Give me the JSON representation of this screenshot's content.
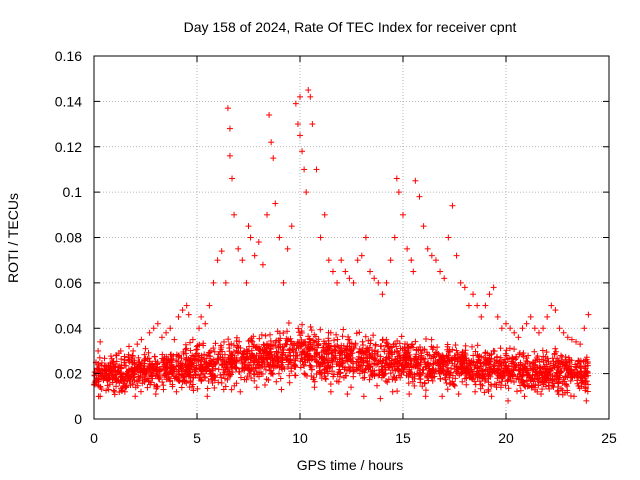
{
  "chart_data": {
    "type": "scatter",
    "title": "Day 158 of 2024, Rate Of TEC Index for receiver cpnt",
    "xlabel": "GPS time / hours",
    "ylabel": "ROTI / TECUs",
    "xlim": [
      0,
      25
    ],
    "ylim": [
      0,
      0.16
    ],
    "xticks": [
      0,
      5,
      10,
      15,
      20,
      25
    ],
    "xtick_labels": [
      "0",
      "5",
      "10",
      "15",
      "20",
      "25"
    ],
    "yticks": [
      0,
      0.02,
      0.04,
      0.06,
      0.08,
      0.1,
      0.12,
      0.14,
      0.16
    ],
    "ytick_labels": [
      "0",
      "0.02",
      "0.04",
      "0.06",
      "0.08",
      "0.1",
      "0.12",
      "0.14",
      "0.16"
    ],
    "grid": true,
    "marker": "plus",
    "color": "#ff0000",
    "series": [
      {
        "name": "ROTI",
        "x": [
          0.0,
          0.1,
          0.2,
          0.3,
          0.4,
          0.5,
          0.7,
          0.9,
          1.1,
          1.3,
          1.5,
          1.7,
          1.9,
          2.1,
          2.3,
          2.5,
          2.7,
          2.9,
          3.1,
          3.3,
          3.5,
          3.7,
          3.9,
          4.1,
          4.3,
          4.5,
          4.6,
          4.8,
          5.0,
          5.1,
          5.2,
          5.4,
          5.6,
          5.8,
          6.0,
          6.2,
          6.4,
          6.5,
          6.6,
          6.6,
          6.7,
          6.8,
          7.0,
          7.2,
          7.4,
          7.5,
          7.6,
          7.8,
          8.0,
          8.2,
          8.4,
          8.5,
          8.6,
          8.7,
          8.8,
          9.0,
          9.2,
          9.4,
          9.6,
          9.8,
          9.9,
          10.0,
          10.0,
          10.1,
          10.2,
          10.3,
          10.4,
          10.5,
          10.6,
          10.8,
          11.0,
          11.2,
          11.4,
          11.6,
          11.8,
          12.0,
          12.2,
          12.4,
          12.6,
          12.8,
          13.0,
          13.2,
          13.4,
          13.6,
          13.8,
          14.0,
          14.2,
          14.4,
          14.6,
          14.7,
          14.8,
          15.0,
          15.2,
          15.4,
          15.5,
          15.6,
          15.8,
          16.0,
          16.2,
          16.4,
          16.6,
          16.8,
          17.0,
          17.2,
          17.4,
          17.6,
          17.8,
          18.0,
          18.2,
          18.4,
          18.6,
          18.8,
          19.0,
          19.2,
          19.4,
          19.6,
          19.8,
          20.0,
          20.2,
          20.4,
          20.6,
          20.8,
          21.0,
          21.2,
          21.4,
          21.6,
          21.8,
          22.0,
          22.2,
          22.4,
          22.6,
          22.8,
          23.0,
          23.2,
          23.4,
          23.6,
          23.8,
          24.0,
          0.3,
          1.0,
          2.0,
          3.0,
          4.0,
          5.5,
          6.3,
          7.1,
          7.9,
          8.3,
          9.1,
          9.5,
          10.7,
          11.5,
          12.3,
          13.1,
          13.9,
          14.5,
          15.3,
          16.1,
          16.9,
          17.7,
          18.5,
          19.3,
          20.1,
          20.9,
          21.7,
          22.5,
          23.3,
          23.9
        ],
        "y": [
          0.015,
          0.025,
          0.03,
          0.034,
          0.02,
          0.018,
          0.022,
          0.025,
          0.028,
          0.03,
          0.026,
          0.032,
          0.03,
          0.033,
          0.035,
          0.031,
          0.038,
          0.04,
          0.042,
          0.036,
          0.038,
          0.04,
          0.035,
          0.045,
          0.048,
          0.05,
          0.046,
          0.035,
          0.032,
          0.04,
          0.045,
          0.042,
          0.05,
          0.06,
          0.07,
          0.074,
          0.06,
          0.137,
          0.128,
          0.116,
          0.106,
          0.09,
          0.075,
          0.07,
          0.06,
          0.085,
          0.08,
          0.072,
          0.078,
          0.068,
          0.09,
          0.134,
          0.122,
          0.115,
          0.095,
          0.08,
          0.06,
          0.075,
          0.085,
          0.139,
          0.13,
          0.142,
          0.125,
          0.118,
          0.11,
          0.1,
          0.145,
          0.142,
          0.13,
          0.11,
          0.08,
          0.09,
          0.07,
          0.065,
          0.06,
          0.07,
          0.065,
          0.062,
          0.06,
          0.07,
          0.072,
          0.08,
          0.065,
          0.062,
          0.06,
          0.055,
          0.06,
          0.07,
          0.08,
          0.106,
          0.1,
          0.09,
          0.075,
          0.07,
          0.065,
          0.105,
          0.098,
          0.085,
          0.075,
          0.072,
          0.07,
          0.065,
          0.062,
          0.08,
          0.094,
          0.072,
          0.06,
          0.058,
          0.05,
          0.055,
          0.05,
          0.045,
          0.05,
          0.055,
          0.058,
          0.045,
          0.04,
          0.042,
          0.04,
          0.038,
          0.036,
          0.04,
          0.042,
          0.045,
          0.04,
          0.038,
          0.04,
          0.045,
          0.05,
          0.048,
          0.04,
          0.038,
          0.036,
          0.035,
          0.034,
          0.033,
          0.04,
          0.046,
          0.01,
          0.012,
          0.01,
          0.011,
          0.012,
          0.01,
          0.013,
          0.012,
          0.014,
          0.015,
          0.013,
          0.016,
          0.014,
          0.012,
          0.011,
          0.01,
          0.009,
          0.012,
          0.011,
          0.01,
          0.01,
          0.011,
          0.012,
          0.01,
          0.008,
          0.01,
          0.011,
          0.012,
          0.01,
          0.008
        ]
      }
    ],
    "baseline_band": [
      {
        "x": 0,
        "low": 0.008,
        "high": 0.03
      },
      {
        "x": 2,
        "low": 0.009,
        "high": 0.032
      },
      {
        "x": 4,
        "low": 0.01,
        "high": 0.034
      },
      {
        "x": 6,
        "low": 0.01,
        "high": 0.037
      },
      {
        "x": 8,
        "low": 0.012,
        "high": 0.042
      },
      {
        "x": 10,
        "low": 0.013,
        "high": 0.046
      },
      {
        "x": 12,
        "low": 0.012,
        "high": 0.042
      },
      {
        "x": 14,
        "low": 0.011,
        "high": 0.04
      },
      {
        "x": 16,
        "low": 0.01,
        "high": 0.038
      },
      {
        "x": 18,
        "low": 0.01,
        "high": 0.036
      },
      {
        "x": 20,
        "low": 0.009,
        "high": 0.034
      },
      {
        "x": 22,
        "low": 0.008,
        "high": 0.033
      },
      {
        "x": 24,
        "low": 0.008,
        "high": 0.032
      }
    ]
  }
}
